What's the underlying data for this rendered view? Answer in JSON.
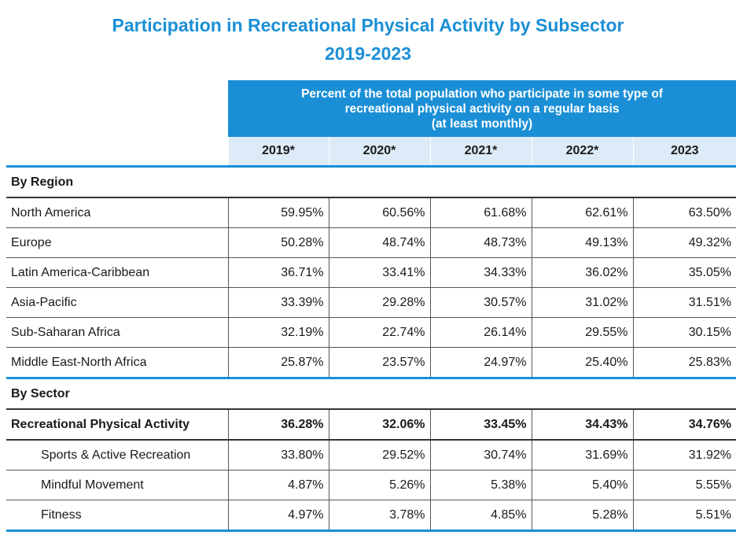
{
  "title": {
    "line1": "Participation in Recreational Physical Activity by Subsector",
    "line2": "2019-2023"
  },
  "header": {
    "banner_line1": "Percent of the total population who participate in some type of",
    "banner_line2": "recreational physical activity on a regular basis",
    "banner_line3": "(at least monthly)",
    "years": [
      "2019*",
      "2020*",
      "2021*",
      "2022*",
      "2023"
    ]
  },
  "region": {
    "heading": "By Region",
    "rows": [
      {
        "label": "North America",
        "values": [
          "59.95%",
          "60.56%",
          "61.68%",
          "62.61%",
          "63.50%"
        ]
      },
      {
        "label": "Europe",
        "values": [
          "50.28%",
          "48.74%",
          "48.73%",
          "49.13%",
          "49.32%"
        ]
      },
      {
        "label": "Latin America-Caribbean",
        "values": [
          "36.71%",
          "33.41%",
          "34.33%",
          "36.02%",
          "35.05%"
        ]
      },
      {
        "label": "Asia-Pacific",
        "values": [
          "33.39%",
          "29.28%",
          "30.57%",
          "31.02%",
          "31.51%"
        ]
      },
      {
        "label": "Sub-Saharan Africa",
        "values": [
          "32.19%",
          "22.74%",
          "26.14%",
          "29.55%",
          "30.15%"
        ]
      },
      {
        "label": "Middle East-North Africa",
        "values": [
          "25.87%",
          "23.57%",
          "24.97%",
          "25.40%",
          "25.83%"
        ]
      }
    ]
  },
  "sector": {
    "heading": "By Sector",
    "rows": [
      {
        "label": "Recreational Physical Activity",
        "values": [
          "36.28%",
          "32.06%",
          "33.45%",
          "34.43%",
          "34.76%"
        ]
      },
      {
        "label": "Sports & Active Recreation",
        "values": [
          "33.80%",
          "29.52%",
          "30.74%",
          "31.69%",
          "31.92%"
        ]
      },
      {
        "label": "Mindful Movement",
        "values": [
          "4.87%",
          "5.26%",
          "5.38%",
          "5.40%",
          "5.55%"
        ]
      },
      {
        "label": "Fitness",
        "values": [
          "4.97%",
          "3.78%",
          "4.85%",
          "5.28%",
          "5.51%"
        ]
      }
    ]
  }
}
